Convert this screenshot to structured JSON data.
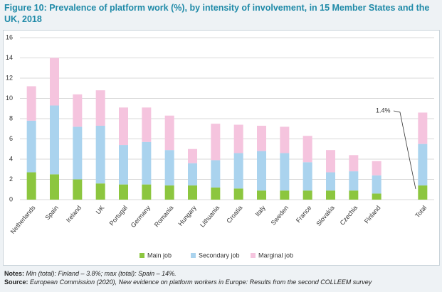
{
  "chart_data": {
    "type": "stacked_bar",
    "title": "Figure 10: Prevalence of platform work (%), by intensity of involvement, in 15 Member States and the UK, 2018",
    "categories": [
      "Netherlands",
      "Spain",
      "Ireland",
      "UK",
      "Portugal",
      "Germany",
      "Romania",
      "Hungary",
      "Lithuania",
      "Croatia",
      "Italy",
      "Sweden",
      "France",
      "Slovakia",
      "Czechia",
      "Finland",
      null,
      "Total"
    ],
    "series": [
      {
        "name": "Main job",
        "color": "#8cc63f",
        "values": [
          2.7,
          2.5,
          2.0,
          1.6,
          1.5,
          1.5,
          1.4,
          1.4,
          1.2,
          1.1,
          0.9,
          0.9,
          0.9,
          0.9,
          0.9,
          0.6,
          null,
          1.4
        ]
      },
      {
        "name": "Secondary job",
        "color": "#aad3ee",
        "values": [
          5.1,
          6.8,
          5.2,
          5.7,
          3.9,
          4.2,
          3.5,
          2.2,
          2.7,
          3.5,
          3.9,
          3.7,
          2.8,
          1.8,
          1.9,
          1.8,
          null,
          4.1
        ]
      },
      {
        "name": "Marginal job",
        "color": "#f5c4de",
        "values": [
          3.4,
          4.7,
          3.2,
          3.5,
          3.7,
          3.4,
          3.4,
          1.4,
          3.6,
          2.8,
          2.5,
          2.6,
          2.6,
          2.2,
          1.6,
          1.4,
          null,
          3.1
        ]
      }
    ],
    "ylim": [
      0,
      16
    ],
    "yticks": [
      0,
      2,
      4,
      6,
      8,
      10,
      12,
      14,
      16
    ],
    "grid": true,
    "annotation": "1.4%",
    "notes_label": "Notes:",
    "notes_text": "Min (total): Finland – 3.8%; max (total): Spain – 14%.",
    "source_label": "Source:",
    "source_text": "European Commission (2020), New evidence on platform workers in Europe: Results from the second COLLEEM survey"
  }
}
